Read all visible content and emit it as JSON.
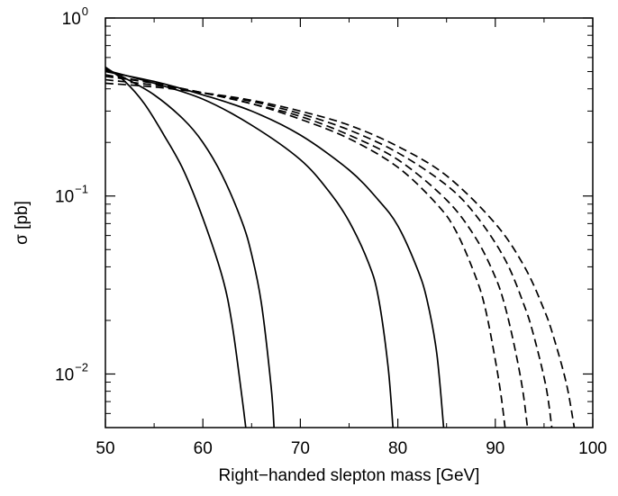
{
  "chart_data": {
    "type": "line",
    "xlabel": "Right−handed slepton mass  [GeV]",
    "ylabel": "σ  [pb]",
    "xlim": [
      50,
      100
    ],
    "ylim": [
      0.005,
      1.0
    ],
    "yscale": "log",
    "grid": false,
    "legend": "none",
    "x_ticks": [
      {
        "value": 50,
        "label": "50"
      },
      {
        "value": 60,
        "label": "60"
      },
      {
        "value": 70,
        "label": "70"
      },
      {
        "value": 80,
        "label": "80"
      },
      {
        "value": 90,
        "label": "90"
      },
      {
        "value": 100,
        "label": "100"
      }
    ],
    "y_ticks": [
      {
        "value": 0.01,
        "base": "10",
        "exp": "−2"
      },
      {
        "value": 0.1,
        "base": "10",
        "exp": "−1"
      },
      {
        "value": 1.0,
        "base": "10",
        "exp": "0"
      }
    ],
    "series": [
      {
        "style": "solid",
        "x": [
          50,
          52,
          54,
          56,
          58,
          60,
          62,
          63,
          64,
          64.4
        ],
        "y": [
          0.53,
          0.44,
          0.33,
          0.22,
          0.14,
          0.075,
          0.035,
          0.019,
          0.0075,
          0.005
        ]
      },
      {
        "style": "solid",
        "x": [
          50,
          52,
          55,
          58,
          60,
          62,
          64,
          65,
          66,
          67,
          67.3
        ],
        "y": [
          0.52,
          0.46,
          0.37,
          0.27,
          0.2,
          0.13,
          0.072,
          0.047,
          0.025,
          0.0085,
          0.005
        ]
      },
      {
        "style": "solid",
        "x": [
          50,
          55,
          60,
          65,
          70,
          73,
          75,
          77,
          78,
          79,
          79.5
        ],
        "y": [
          0.51,
          0.43,
          0.35,
          0.25,
          0.16,
          0.105,
          0.072,
          0.042,
          0.027,
          0.011,
          0.005
        ]
      },
      {
        "style": "solid",
        "x": [
          50,
          55,
          60,
          65,
          70,
          75,
          78,
          80,
          82,
          83,
          84,
          84.7
        ],
        "y": [
          0.5,
          0.44,
          0.37,
          0.3,
          0.22,
          0.14,
          0.095,
          0.068,
          0.039,
          0.026,
          0.013,
          0.005
        ]
      },
      {
        "style": "dashed",
        "x": [
          50,
          55,
          60,
          65,
          70,
          75,
          80,
          84,
          86,
          88,
          89,
          90,
          90.6,
          91
        ],
        "y": [
          0.48,
          0.43,
          0.38,
          0.33,
          0.27,
          0.21,
          0.145,
          0.09,
          0.063,
          0.035,
          0.023,
          0.012,
          0.0075,
          0.005
        ]
      },
      {
        "style": "dashed",
        "x": [
          50,
          55,
          60,
          65,
          70,
          75,
          80,
          85,
          88,
          90,
          91,
          92,
          92.8,
          93.3
        ],
        "y": [
          0.47,
          0.43,
          0.38,
          0.33,
          0.28,
          0.22,
          0.16,
          0.095,
          0.058,
          0.035,
          0.024,
          0.014,
          0.0082,
          0.005
        ]
      },
      {
        "style": "dashed",
        "x": [
          50,
          55,
          60,
          65,
          70,
          75,
          80,
          85,
          88,
          91,
          93,
          94,
          95.2,
          95.8
        ],
        "y": [
          0.45,
          0.42,
          0.38,
          0.34,
          0.29,
          0.235,
          0.175,
          0.115,
          0.078,
          0.044,
          0.024,
          0.016,
          0.0085,
          0.005
        ]
      },
      {
        "style": "dashed",
        "x": [
          50,
          55,
          60,
          65,
          70,
          75,
          80,
          85,
          90,
          93,
          95,
          96,
          97.3,
          98.1
        ],
        "y": [
          0.43,
          0.41,
          0.38,
          0.345,
          0.3,
          0.25,
          0.19,
          0.13,
          0.07,
          0.04,
          0.023,
          0.016,
          0.0088,
          0.005
        ]
      }
    ]
  }
}
